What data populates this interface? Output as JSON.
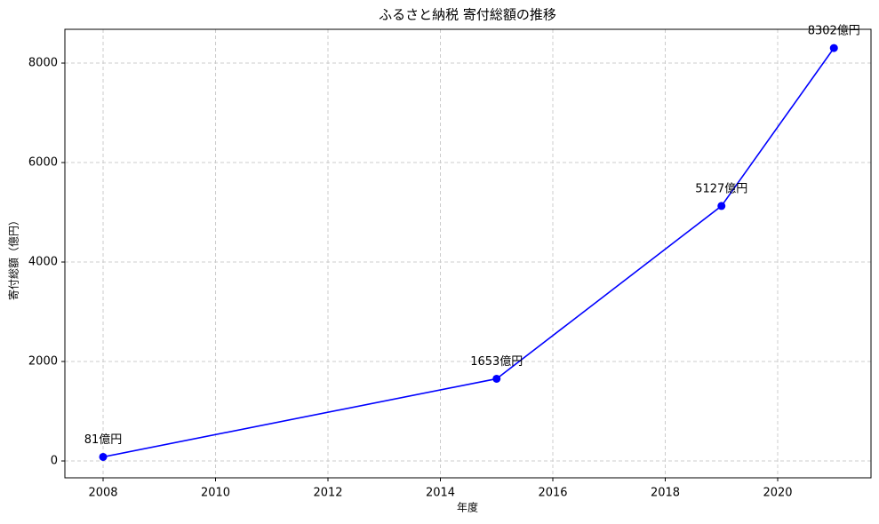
{
  "chart_data": {
    "type": "line",
    "title": "ふるさと納税 寄付総額の推移",
    "x_label": "年度",
    "y_label": "寄付総額（億円）",
    "x": [
      2008,
      2015,
      2019,
      2021
    ],
    "series": [
      {
        "color": "#0000ff",
        "values": [
          81,
          1653,
          5127,
          8302
        ],
        "value_labels": [
          "81億円",
          "1653億円",
          "5127億円",
          "8302億円"
        ]
      }
    ],
    "xlim": [
      2007.32,
      2021.66
    ],
    "ylim": [
      -339,
      8679
    ],
    "xticks": [
      2008,
      2010,
      2012,
      2014,
      2016,
      2018,
      2020
    ],
    "yticks": [
      0,
      2000,
      4000,
      6000,
      8000
    ],
    "grid": true
  }
}
